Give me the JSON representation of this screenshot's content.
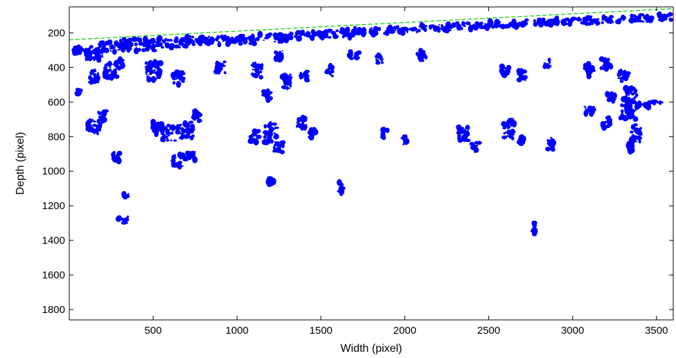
{
  "chart_data": {
    "type": "scatter",
    "title": "",
    "xlabel": "Width (pixel)",
    "ylabel": "Depth (pixel)",
    "xlim": [
      0,
      3600
    ],
    "ylim": [
      1860,
      50
    ],
    "y_axis_inverted": true,
    "xticks": [
      500,
      1000,
      1500,
      2000,
      2500,
      3000,
      3500
    ],
    "yticks": [
      200,
      400,
      600,
      800,
      1000,
      1200,
      1400,
      1600,
      1800
    ],
    "grid": false,
    "legend": "none",
    "colors": {
      "points": "#0000ff",
      "surface_line": "#00cc00",
      "axes": "#000000"
    },
    "series": [
      {
        "kind": "dashed-line",
        "x": [
          0,
          3600
        ],
        "y": [
          240,
          60
        ]
      },
      {
        "kind": "blobs",
        "points": [
          [
            50,
            300,
            60,
            50
          ],
          [
            150,
            320,
            120,
            80
          ],
          [
            250,
            280,
            150,
            60
          ],
          [
            400,
            270,
            220,
            70
          ],
          [
            600,
            260,
            220,
            60
          ],
          [
            800,
            245,
            200,
            50
          ],
          [
            1000,
            240,
            220,
            50
          ],
          [
            1200,
            230,
            200,
            45
          ],
          [
            1400,
            215,
            220,
            45
          ],
          [
            1600,
            205,
            220,
            45
          ],
          [
            1800,
            190,
            200,
            40
          ],
          [
            2000,
            180,
            220,
            40
          ],
          [
            2200,
            170,
            200,
            35
          ],
          [
            2400,
            160,
            200,
            35
          ],
          [
            2600,
            150,
            220,
            35
          ],
          [
            2800,
            140,
            200,
            35
          ],
          [
            3000,
            130,
            220,
            40
          ],
          [
            3200,
            125,
            220,
            40
          ],
          [
            3400,
            115,
            150,
            40
          ],
          [
            3550,
            110,
            80,
            40
          ],
          [
            150,
            450,
            60,
            80
          ],
          [
            250,
            420,
            80,
            90
          ],
          [
            300,
            380,
            50,
            60
          ],
          [
            500,
            420,
            90,
            100
          ],
          [
            650,
            460,
            70,
            80
          ],
          [
            900,
            400,
            60,
            70
          ],
          [
            1120,
            420,
            60,
            90
          ],
          [
            1180,
            560,
            40,
            60
          ],
          [
            1250,
            330,
            50,
            60
          ],
          [
            1300,
            480,
            60,
            80
          ],
          [
            1400,
            450,
            40,
            60
          ],
          [
            1550,
            420,
            40,
            60
          ],
          [
            1700,
            330,
            60,
            50
          ],
          [
            1850,
            350,
            40,
            50
          ],
          [
            2100,
            330,
            60,
            70
          ],
          [
            2600,
            420,
            50,
            60
          ],
          [
            2700,
            450,
            40,
            60
          ],
          [
            2850,
            380,
            40,
            50
          ],
          [
            3100,
            420,
            50,
            70
          ],
          [
            3200,
            380,
            60,
            60
          ],
          [
            3300,
            450,
            70,
            60
          ],
          [
            150,
            740,
            80,
            90
          ],
          [
            200,
            680,
            60,
            60
          ],
          [
            280,
            920,
            40,
            60
          ],
          [
            530,
            750,
            70,
            70
          ],
          [
            600,
            780,
            100,
            90
          ],
          [
            700,
            760,
            90,
            100
          ],
          [
            760,
            680,
            50,
            60
          ],
          [
            720,
            910,
            60,
            50
          ],
          [
            650,
            940,
            70,
            70
          ],
          [
            1100,
            800,
            60,
            70
          ],
          [
            1200,
            780,
            80,
            110
          ],
          [
            1250,
            860,
            60,
            60
          ],
          [
            1380,
            720,
            60,
            70
          ],
          [
            1450,
            780,
            40,
            50
          ],
          [
            1880,
            780,
            40,
            60
          ],
          [
            2000,
            820,
            30,
            50
          ],
          [
            2350,
            780,
            60,
            90
          ],
          [
            2420,
            860,
            50,
            60
          ],
          [
            2620,
            760,
            70,
            110
          ],
          [
            2700,
            820,
            40,
            50
          ],
          [
            2870,
            840,
            40,
            70
          ],
          [
            3100,
            650,
            60,
            50
          ],
          [
            3200,
            720,
            60,
            60
          ],
          [
            3330,
            640,
            90,
            120
          ],
          [
            3380,
            780,
            60,
            100
          ],
          [
            3350,
            860,
            40,
            50
          ],
          [
            3220,
            570,
            60,
            50
          ],
          [
            3350,
            560,
            70,
            80
          ],
          [
            3420,
            620,
            80,
            20
          ],
          [
            3500,
            600,
            100,
            12
          ],
          [
            1200,
            1060,
            40,
            40
          ],
          [
            1620,
            1100,
            30,
            70
          ],
          [
            320,
            1280,
            60,
            40
          ],
          [
            340,
            1140,
            30,
            20
          ],
          [
            2770,
            1330,
            12,
            70
          ],
          [
            60,
            540,
            30,
            40
          ]
        ]
      }
    ]
  }
}
